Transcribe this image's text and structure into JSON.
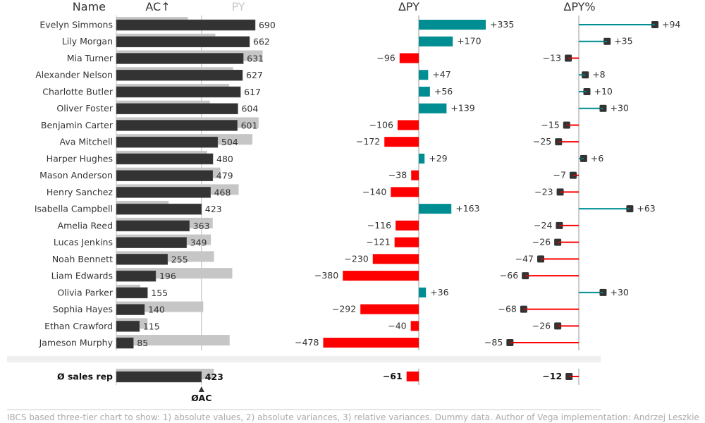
{
  "chart_data": {
    "type": "bar",
    "title": "",
    "headers": {
      "name": "Name",
      "ac": "AC↑",
      "py": "PY",
      "dpy": "ΔPY",
      "dpypct": "ΔPY%"
    },
    "categories": [
      "Evelyn Simmons",
      "Lily Morgan",
      "Mia Turner",
      "Alexander Nelson",
      "Charlotte Butler",
      "Oliver Foster",
      "Benjamin Carter",
      "Ava Mitchell",
      "Harper Hughes",
      "Mason Anderson",
      "Henry Sanchez",
      "Isabella Campbell",
      "Amelia Reed",
      "Lucas Jenkins",
      "Noah Bennett",
      "Liam Edwards",
      "Olivia Parker",
      "Sophia Hayes",
      "Ethan Crawford",
      "Jameson Murphy"
    ],
    "series": [
      {
        "name": "AC",
        "values": [
          690,
          662,
          631,
          627,
          617,
          604,
          601,
          504,
          480,
          479,
          468,
          423,
          363,
          349,
          255,
          196,
          155,
          140,
          115,
          85
        ]
      },
      {
        "name": "PY",
        "values": [
          355,
          492,
          727,
          580,
          561,
          465,
          707,
          676,
          451,
          517,
          608,
          260,
          479,
          470,
          485,
          576,
          119,
          432,
          155,
          563
        ]
      },
      {
        "name": "ΔPY",
        "values": [
          335,
          170,
          -96,
          47,
          56,
          139,
          -106,
          -172,
          29,
          -38,
          -140,
          163,
          -116,
          -121,
          -230,
          -380,
          36,
          -292,
          -40,
          -478
        ]
      },
      {
        "name": "ΔPY%",
        "values": [
          94,
          35,
          -13,
          8,
          10,
          30,
          -15,
          -25,
          6,
          -7,
          -23,
          63,
          -24,
          -26,
          -47,
          -66,
          30,
          -68,
          -26,
          -85
        ]
      }
    ],
    "average": {
      "label": "Ø sales rep",
      "ac": 423,
      "py": 484,
      "dpy": -61,
      "dpypct": -12,
      "marker_label": "ØAC"
    },
    "colors": {
      "ac": "#333333",
      "py": "#c6c6c6",
      "positive": "#008e92",
      "negative": "#ff0000",
      "axis": "#cccccc",
      "band": "#efefef"
    },
    "footer": "IBCS based three-tier chart to show: 1) absolute values, 2) absolute variances, 3) relative variances. Dummy data. Author of Vega implementation: Andrzej Leszkie"
  }
}
